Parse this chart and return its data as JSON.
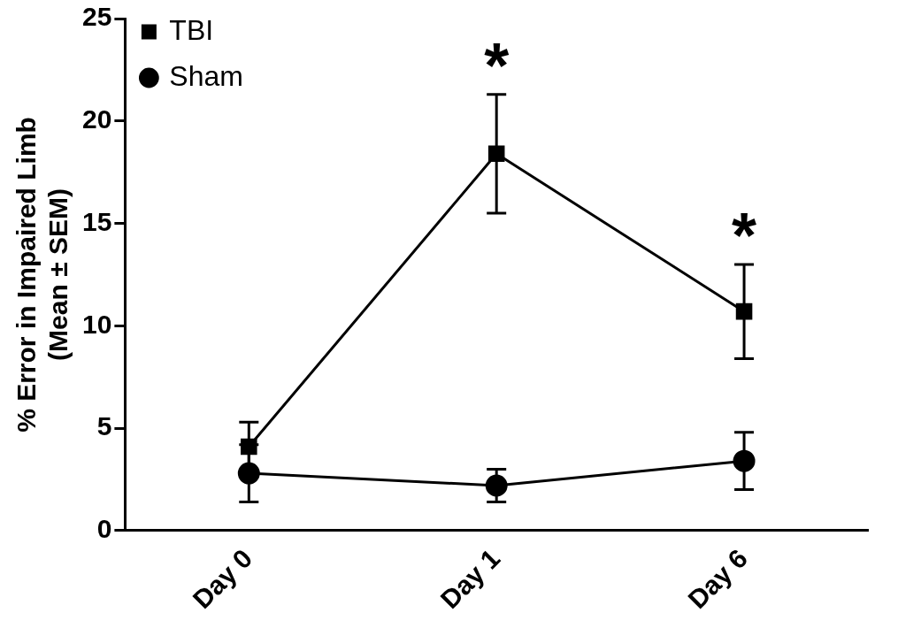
{
  "chart_data": {
    "type": "line",
    "ylabel": "% Error in Impaired Limb\n(Mean ± SEM)",
    "categories": [
      "Day 0",
      "Day 1",
      "Day 6"
    ],
    "series": [
      {
        "name": "TBI",
        "color": "#000000",
        "marker": "square",
        "values": [
          4.1,
          18.4,
          10.7
        ],
        "errors": [
          1.2,
          2.9,
          2.3
        ]
      },
      {
        "name": "Sham",
        "color": "#000000",
        "marker": "circle",
        "values": [
          2.8,
          2.2,
          3.4
        ],
        "errors": [
          1.4,
          0.8,
          1.4
        ]
      }
    ],
    "ylim": [
      0,
      25
    ],
    "yticks": [
      0,
      5,
      10,
      15,
      20,
      25
    ],
    "grid": false,
    "legend": "top left",
    "annotations": [
      "*",
      "*"
    ]
  }
}
